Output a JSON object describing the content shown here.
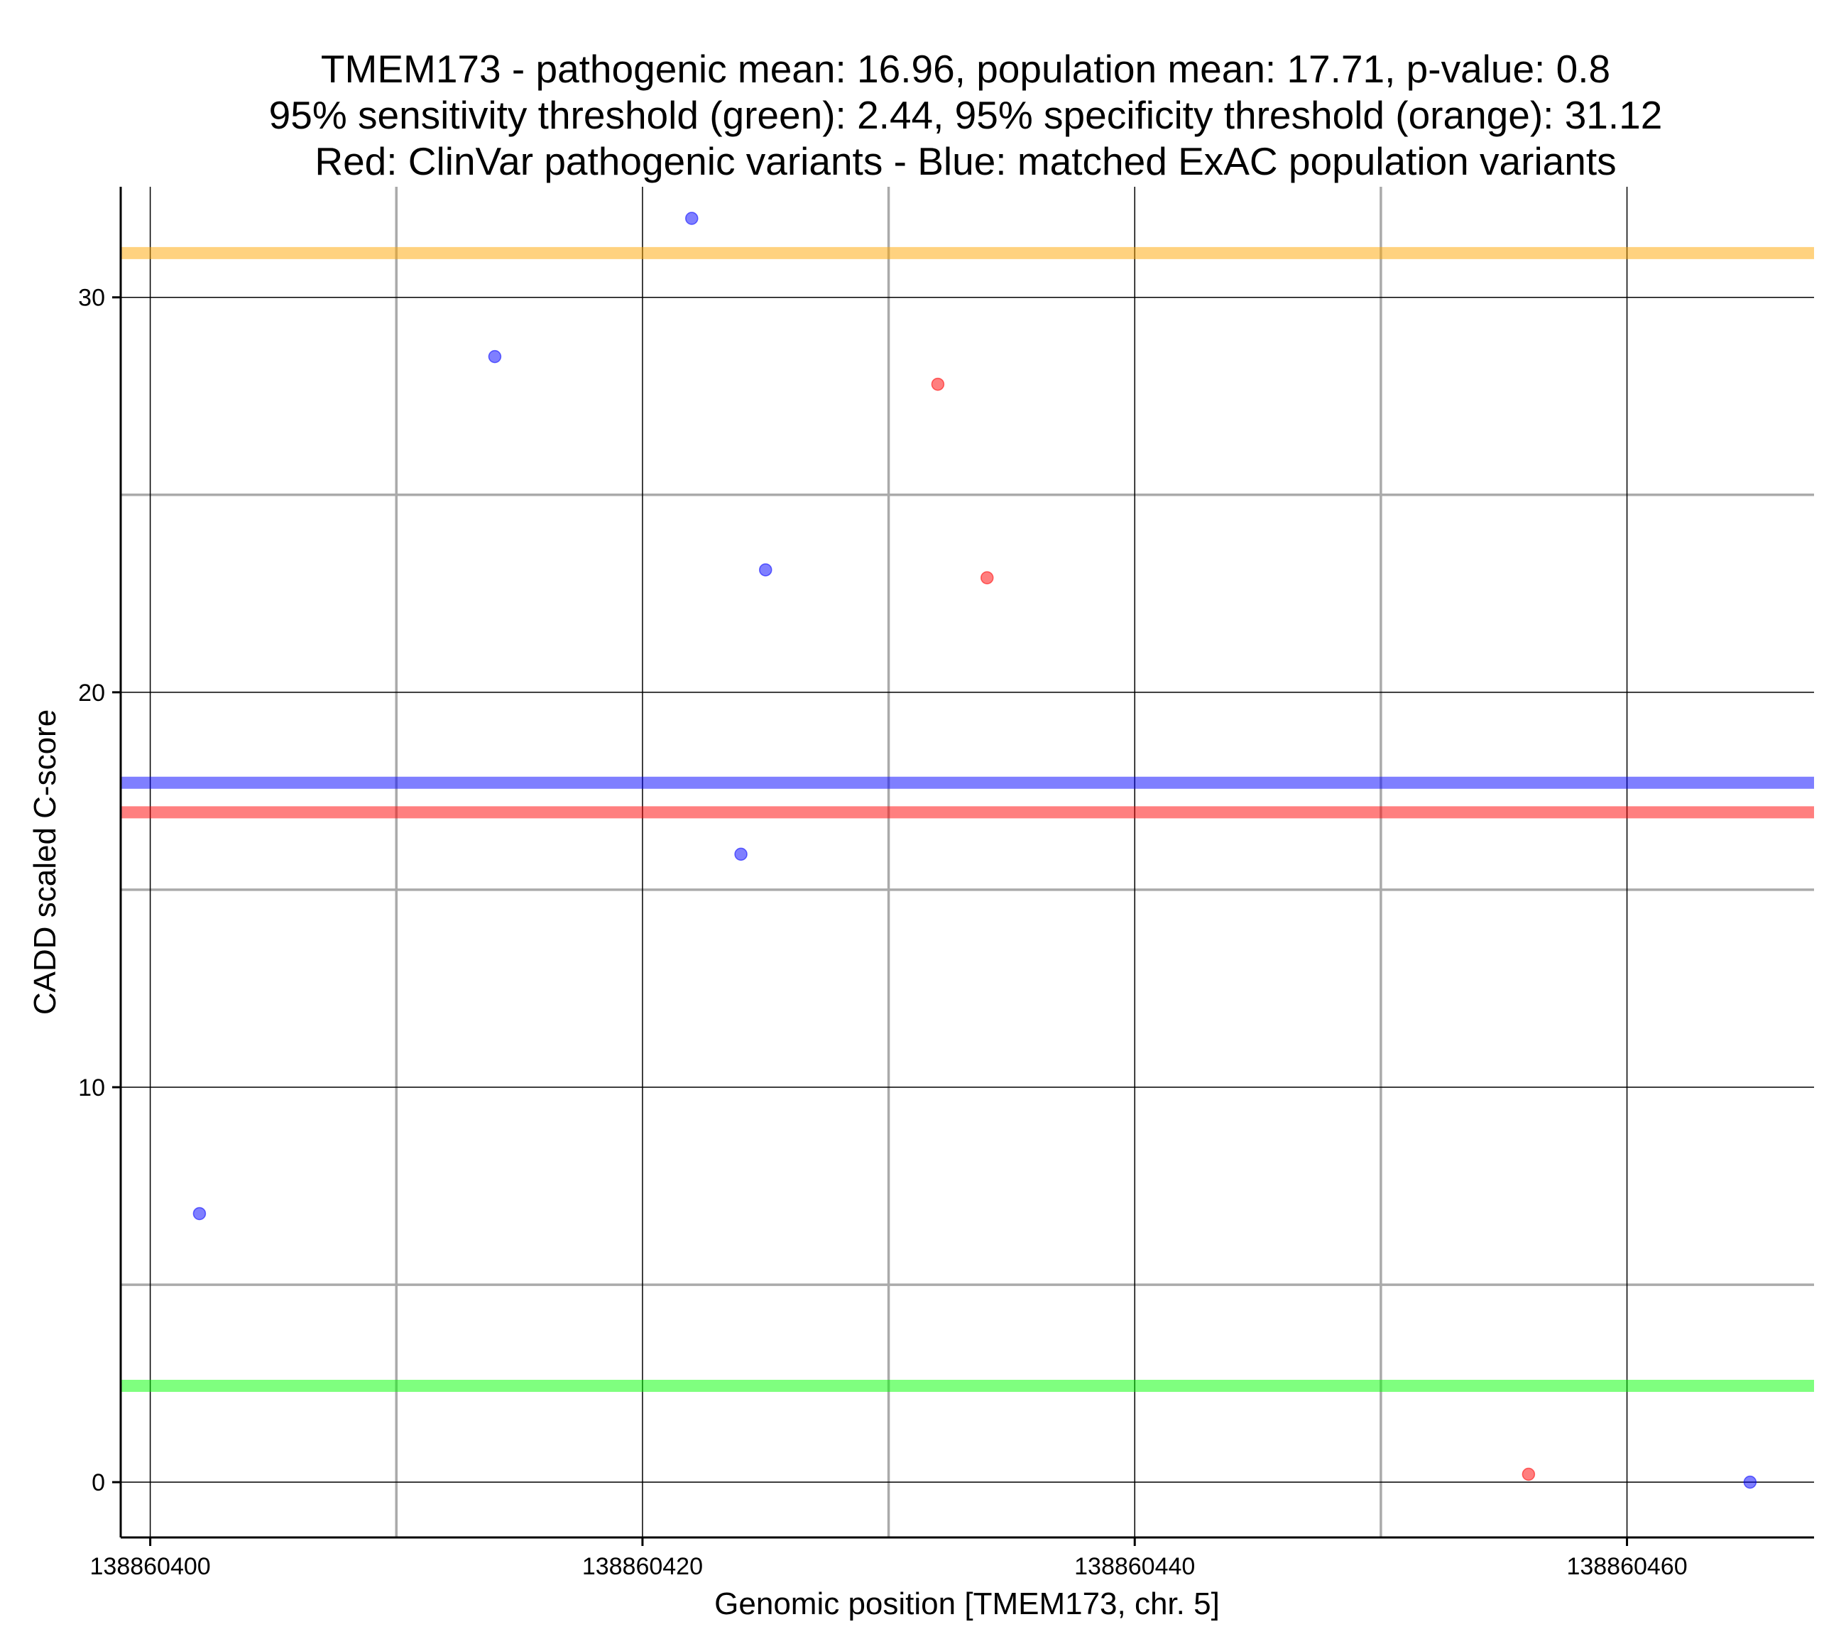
{
  "chart_data": {
    "type": "scatter",
    "title": [
      "TMEM173 - pathogenic mean: 16.96, population mean: 17.71, p-value: 0.8",
      "95% sensitivity threshold (green): 2.44, 95% specificity threshold (orange): 31.12",
      "Red: ClinVar pathogenic variants - Blue: matched ExAC population variants"
    ],
    "xlabel": "Genomic position [TMEM173, chr. 5]",
    "ylabel": "CADD scaled C-score",
    "xlim": [
      138860398.8,
      138860467.6
    ],
    "ylim": [
      -1.4,
      32.8
    ],
    "x_ticks": [
      138860400,
      138860420,
      138860440,
      138860460
    ],
    "x_tick_labels": [
      "138860400",
      "138860420",
      "138860440",
      "138860460"
    ],
    "x_minor_grid": [
      138860410,
      138860430,
      138860450
    ],
    "y_ticks": [
      0,
      10,
      20,
      30
    ],
    "y_tick_labels": [
      "0",
      "10",
      "20",
      "30"
    ],
    "y_minor_grid": [
      5,
      15,
      25
    ],
    "grid": true,
    "series": [
      {
        "name": "ClinVar pathogenic variants",
        "color": "#ff0000",
        "points": [
          {
            "x": 138860432,
            "y": 27.8
          },
          {
            "x": 138860434,
            "y": 22.9
          },
          {
            "x": 138860456,
            "y": 0.2
          }
        ]
      },
      {
        "name": "matched ExAC population variants",
        "color": "#0000ff",
        "points": [
          {
            "x": 138860402,
            "y": 6.8
          },
          {
            "x": 138860414,
            "y": 28.5
          },
          {
            "x": 138860422,
            "y": 32.0
          },
          {
            "x": 138860424,
            "y": 15.9
          },
          {
            "x": 138860425,
            "y": 23.1
          },
          {
            "x": 138860465,
            "y": 0.0
          }
        ]
      }
    ],
    "reference_lines": [
      {
        "name": "95% specificity threshold (orange)",
        "y": 31.12,
        "color": "#ffa500"
      },
      {
        "name": "population mean",
        "y": 17.71,
        "color": "#0000ff"
      },
      {
        "name": "pathogenic mean",
        "y": 16.96,
        "color": "#ff0000"
      },
      {
        "name": "95% sensitivity threshold (green)",
        "y": 2.44,
        "color": "#00ff00"
      }
    ]
  }
}
